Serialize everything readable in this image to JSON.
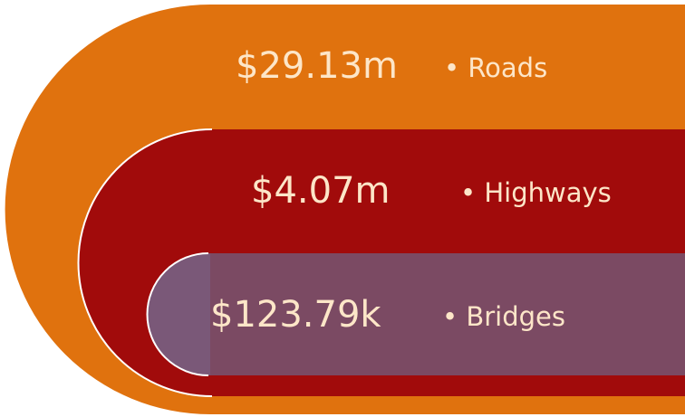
{
  "items": [
    {
      "value": "$29.13m",
      "label": "• Roads"
    },
    {
      "value": "$4.07m",
      "label": "• Highways"
    },
    {
      "value": "$123.79k",
      "label": "• Bridges"
    }
  ]
}
